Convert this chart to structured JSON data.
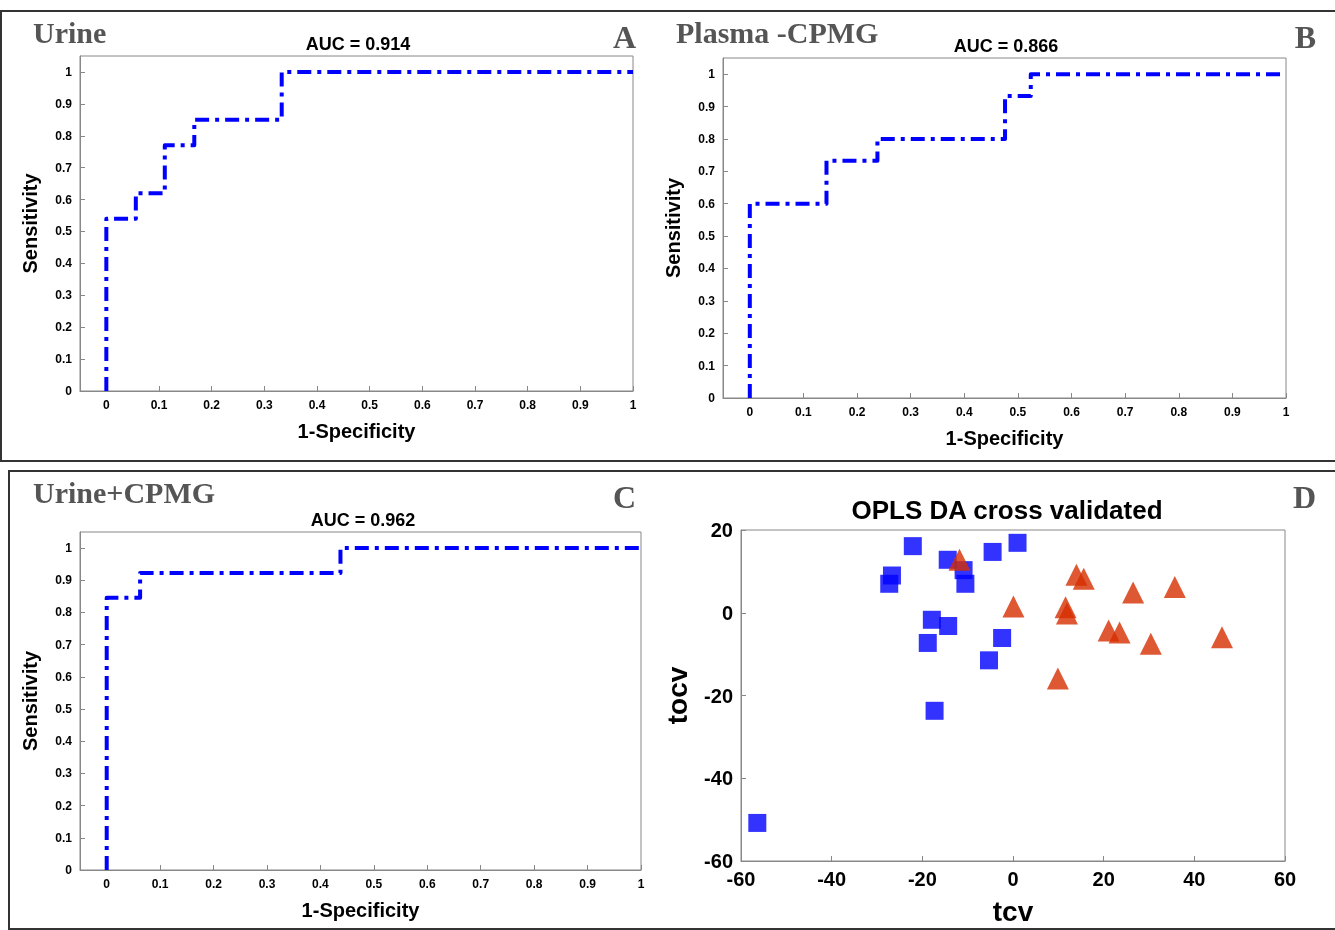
{
  "chart_data": [
    {
      "type": "step",
      "title": "Urine",
      "subtitle": "AUC = 0.914",
      "annotations": [
        "A"
      ],
      "xlabel": "1-Specificity",
      "ylabel": "Sensitivity",
      "xlim": [
        -0.05,
        1
      ],
      "ylim": [
        0,
        1.05
      ],
      "xticks": [
        0,
        0.1,
        0.2,
        0.3,
        0.4,
        0.5,
        0.6,
        0.7,
        0.8,
        0.9,
        1
      ],
      "yticks": [
        0,
        0.1,
        0.2,
        0.3,
        0.4,
        0.5,
        0.6,
        0.7,
        0.8,
        0.9,
        1
      ],
      "grid": false,
      "marker": "none",
      "line_style": "dashed",
      "series": [
        {
          "color": "#0000ff",
          "x": [
            0,
            0,
            0.056,
            0.111,
            0.167,
            0.333,
            1
          ],
          "values": [
            0,
            0.54,
            0.62,
            0.77,
            0.85,
            1,
            1
          ]
        }
      ]
    },
    {
      "type": "step",
      "title": "Plasma -CPMG",
      "subtitle": "AUC = 0.866",
      "annotations": [
        "B"
      ],
      "xlabel": "1-Specificity",
      "ylabel": "Sensitivity",
      "xlim": [
        -0.05,
        1
      ],
      "ylim": [
        0,
        1.05
      ],
      "xticks": [
        0,
        0.1,
        0.2,
        0.3,
        0.4,
        0.5,
        0.6,
        0.7,
        0.8,
        0.9,
        1
      ],
      "yticks": [
        0,
        0.1,
        0.2,
        0.3,
        0.4,
        0.5,
        0.6,
        0.7,
        0.8,
        0.9,
        1
      ],
      "grid": false,
      "marker": "none",
      "line_style": "dashed",
      "series": [
        {
          "color": "#0000ff",
          "x": [
            0,
            0,
            0.143,
            0.238,
            0.476,
            0.524,
            1
          ],
          "values": [
            0,
            0.6,
            0.733,
            0.8,
            0.933,
            1,
            1
          ]
        }
      ]
    },
    {
      "type": "step",
      "title": "Urine+CPMG",
      "subtitle": "AUC = 0.962",
      "annotations": [
        "C"
      ],
      "xlabel": "1-Specificity",
      "ylabel": "Sensitivity",
      "xlim": [
        -0.05,
        1
      ],
      "ylim": [
        0,
        1.05
      ],
      "xticks": [
        0,
        0.1,
        0.2,
        0.3,
        0.4,
        0.5,
        0.6,
        0.7,
        0.8,
        0.9,
        1
      ],
      "yticks": [
        0,
        0.1,
        0.2,
        0.3,
        0.4,
        0.5,
        0.6,
        0.7,
        0.8,
        0.9,
        1
      ],
      "grid": false,
      "marker": "none",
      "line_style": "dashed",
      "series": [
        {
          "color": "#0000ff",
          "x": [
            0,
            0,
            0.0625,
            0.4375,
            1
          ],
          "values": [
            0,
            0.846,
            0.923,
            1,
            1
          ]
        }
      ]
    },
    {
      "type": "scatter",
      "title": "OPLS DA cross validated",
      "annotations": [
        "D"
      ],
      "xlabel": "tcv",
      "ylabel": "tocv",
      "xlim": [
        -60,
        60
      ],
      "ylim": [
        -60,
        20
      ],
      "xticks": [
        -60,
        -40,
        -20,
        0,
        20,
        40,
        60
      ],
      "yticks": [
        -60,
        -40,
        -20,
        0,
        20
      ],
      "grid": false,
      "series": [
        {
          "color": "#0000ff",
          "marker": "square",
          "x": [
            -22.1,
            -26.7,
            -27.3,
            -14.4,
            -10.9,
            -10.5,
            -4.5,
            1.0,
            -17.9,
            -18.8,
            -14.3,
            -2.4,
            -5.3,
            -17.3,
            -56.4
          ],
          "values": [
            16.1,
            9.0,
            7.0,
            12.8,
            10.3,
            7.0,
            14.7,
            16.9,
            -1.7,
            -7.3,
            -3.2,
            -6.1,
            -11.5,
            -23.7,
            -50.8
          ]
        },
        {
          "color": "#d62e00",
          "marker": "triangle",
          "x": [
            -11.8,
            0.1,
            11.6,
            11.9,
            14.0,
            15.6,
            26.5,
            35.7,
            21.1,
            23.5,
            30.4,
            46.1,
            9.9
          ],
          "values": [
            12.8,
            1.5,
            1.3,
            -0.2,
            9.2,
            8.2,
            4.9,
            6.2,
            -4.3,
            -4.8,
            -7.5,
            -5.9,
            -15.9
          ]
        }
      ]
    }
  ]
}
